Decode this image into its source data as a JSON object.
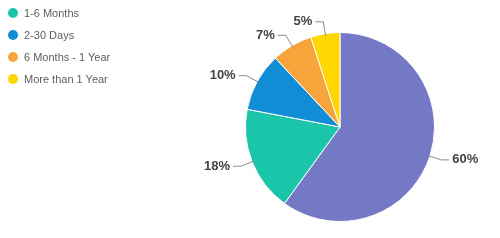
{
  "chart_data": {
    "type": "pie",
    "categories": [
      null,
      "1-6 Months",
      "2-30 Days",
      "6 Months - 1 Year",
      "More than 1 Year"
    ],
    "values": [
      60,
      18,
      10,
      7,
      5
    ],
    "value_labels": [
      "60%",
      "18%",
      "10%",
      "7%",
      "5%"
    ],
    "colors": [
      "#7479c6",
      "#1bc5aa",
      "#118dd6",
      "#f7a43a",
      "#fed600"
    ],
    "data_labels": true,
    "legend": "top-left"
  }
}
